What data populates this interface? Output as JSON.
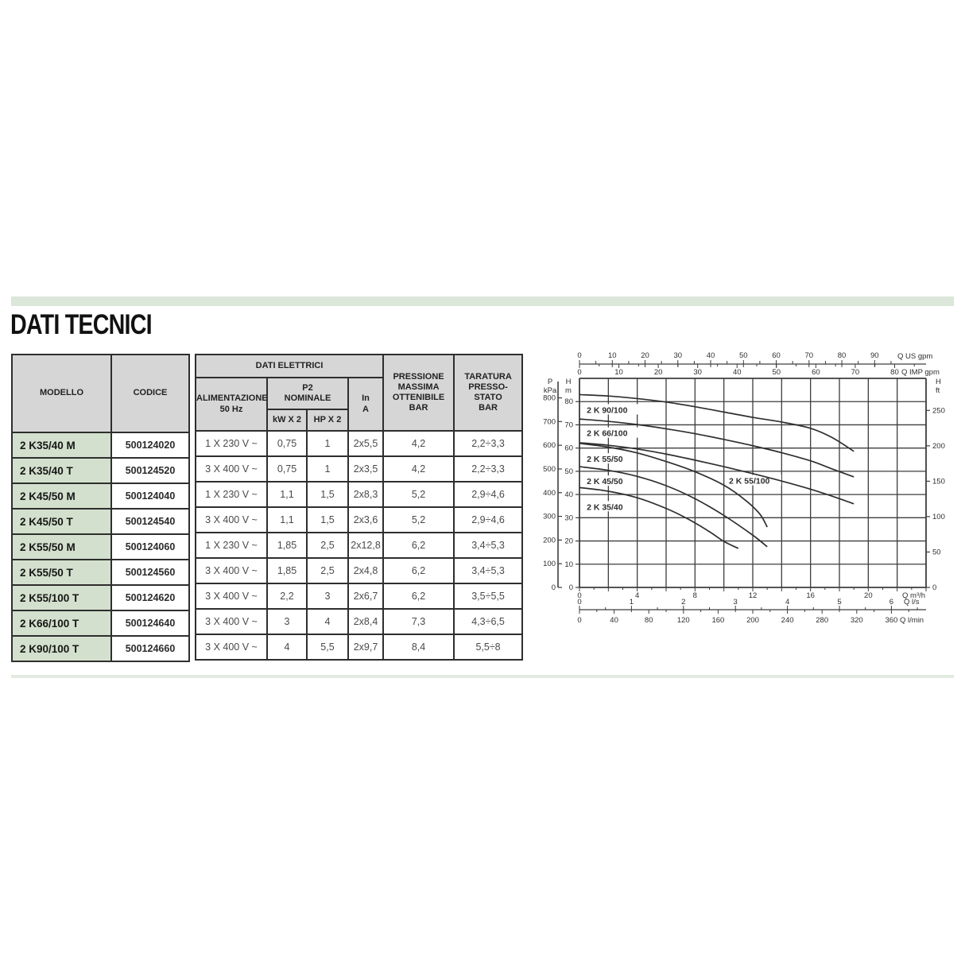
{
  "page": {
    "title": "DATI TECNICI"
  },
  "table": {
    "headers": {
      "modello": "MODELLO",
      "codice": "CODICE",
      "dati_elettrici": "DATI ELETTRICI",
      "alimentazione": "ALIMENTAZIONE\n50 Hz",
      "p2_nominale": "P2\nNOMINALE",
      "kw": "kW X 2",
      "hp": "HP X 2",
      "in_a": "In\nA",
      "pressione": "PRESSIONE\nMASSIMA\nOTTENIBILE\nBAR",
      "taratura": "TARATURA\nPRESSO-\nSTATO\nBAR"
    },
    "rows": [
      {
        "model": "2 K35/40 M",
        "codice": "500124020",
        "alimentazione": "1 X 230 V ~",
        "kw": "0,75",
        "hp": "1",
        "in_a": "2x5,5",
        "pressione": "4,2",
        "taratura": "2,2÷3,3"
      },
      {
        "model": "2 K35/40 T",
        "codice": "500124520",
        "alimentazione": "3 X 400 V ~",
        "kw": "0,75",
        "hp": "1",
        "in_a": "2x3,5",
        "pressione": "4,2",
        "taratura": "2,2÷3,3"
      },
      {
        "model": "2 K45/50 M",
        "codice": "500124040",
        "alimentazione": "1 X 230 V ~",
        "kw": "1,1",
        "hp": "1,5",
        "in_a": "2x8,3",
        "pressione": "5,2",
        "taratura": "2,9÷4,6"
      },
      {
        "model": "2 K45/50 T",
        "codice": "500124540",
        "alimentazione": "3 X 400 V ~",
        "kw": "1,1",
        "hp": "1,5",
        "in_a": "2x3,6",
        "pressione": "5,2",
        "taratura": "2,9÷4,6"
      },
      {
        "model": "2 K55/50 M",
        "codice": "500124060",
        "alimentazione": "1 X 230 V ~",
        "kw": "1,85",
        "hp": "2,5",
        "in_a": "2x12,8",
        "pressione": "6,2",
        "taratura": "3,4÷5,3"
      },
      {
        "model": "2 K55/50 T",
        "codice": "500124560",
        "alimentazione": "3 X 400 V ~",
        "kw": "1,85",
        "hp": "2,5",
        "in_a": "2x4,8",
        "pressione": "6,2",
        "taratura": "3,4÷5,3"
      },
      {
        "model": "2 K55/100 T",
        "codice": "500124620",
        "alimentazione": "3 X 400 V ~",
        "kw": "2,2",
        "hp": "3",
        "in_a": "2x6,7",
        "pressione": "6,2",
        "taratura": "3,5÷5,5"
      },
      {
        "model": "2 K66/100 T",
        "codice": "500124640",
        "alimentazione": "3 X 400 V ~",
        "kw": "3",
        "hp": "4",
        "in_a": "2x8,4",
        "pressione": "7,3",
        "taratura": "4,3÷6,5"
      },
      {
        "model": "2 K90/100 T",
        "codice": "500124660",
        "alimentazione": "3 X 400 V ~",
        "kw": "4",
        "hp": "5,5",
        "in_a": "2x9,7",
        "pressione": "8,4",
        "taratura": "5,5÷8"
      }
    ]
  },
  "chart_data": {
    "type": "line",
    "title": "",
    "xlim_m3h": [
      0,
      24
    ],
    "ylim_m": [
      0,
      90
    ],
    "grid": {
      "x_step_m3h": 2,
      "y_step_m": 10
    },
    "axes": {
      "top": [
        {
          "label": "Q US gpm",
          "ticks": [
            0,
            10,
            20,
            30,
            40,
            50,
            60,
            70,
            80,
            90
          ],
          "to_m3h": 0.2271
        },
        {
          "label": "Q IMP gpm",
          "ticks": [
            0,
            10,
            20,
            30,
            40,
            50,
            60,
            70,
            80
          ],
          "to_m3h": 0.2728
        }
      ],
      "bottom": [
        {
          "label": "Q m³/h",
          "ticks": [
            0,
            4,
            8,
            12,
            16,
            20
          ],
          "to_m3h": 1
        },
        {
          "label": "Q l/s",
          "ticks": [
            0,
            1,
            2,
            3,
            4,
            5,
            6
          ],
          "to_m3h": 3.6
        },
        {
          "label": "Q l/min",
          "ticks": [
            0,
            40,
            80,
            120,
            160,
            200,
            240,
            280,
            320,
            360
          ],
          "to_m3h": 0.06
        }
      ],
      "left_pressure": {
        "label": "P kPa",
        "ticks": [
          0,
          100,
          200,
          300,
          400,
          500,
          600,
          700,
          800
        ],
        "to_m": 0.102
      },
      "left_head": {
        "label": "H m",
        "ticks": [
          0,
          10,
          20,
          30,
          40,
          50,
          60,
          70,
          80
        ],
        "to_m": 1
      },
      "right_head": {
        "label": "H ft",
        "ticks": [
          0,
          50,
          100,
          150,
          200,
          250
        ],
        "to_m": 0.3048
      }
    },
    "series": [
      {
        "name": "2 K 90/100",
        "label_at": [
          0.5,
          76.5
        ],
        "points": [
          [
            0,
            83
          ],
          [
            2,
            82.4
          ],
          [
            4,
            81.3
          ],
          [
            6,
            79.8
          ],
          [
            8,
            77.8
          ],
          [
            10,
            75.5
          ],
          [
            12,
            73.2
          ],
          [
            14,
            71.2
          ],
          [
            16,
            68.5
          ],
          [
            17.5,
            64.5
          ],
          [
            19,
            58.6
          ]
        ]
      },
      {
        "name": "2 K 66/100",
        "label_at": [
          0.5,
          66.5
        ],
        "points": [
          [
            0,
            72.5
          ],
          [
            2,
            71.5
          ],
          [
            4,
            70.1
          ],
          [
            6,
            68.3
          ],
          [
            8,
            66.2
          ],
          [
            10,
            63.7
          ],
          [
            12,
            61
          ],
          [
            14,
            58
          ],
          [
            16,
            54.5
          ],
          [
            17.5,
            51
          ],
          [
            19,
            47.6
          ]
        ]
      },
      {
        "name": "2 K 55/100",
        "label_at": [
          10.35,
          46
        ],
        "points": [
          [
            0,
            62.3
          ],
          [
            2,
            61.2
          ],
          [
            4,
            59.6
          ],
          [
            6,
            57.4
          ],
          [
            8,
            54.8
          ],
          [
            10,
            52
          ],
          [
            12,
            49
          ],
          [
            14,
            45.8
          ],
          [
            16,
            42.3
          ],
          [
            17.5,
            39.3
          ],
          [
            19,
            36
          ]
        ]
      },
      {
        "name": "2 K 55/50",
        "label_at": [
          0.5,
          55.4
        ],
        "points": [
          [
            0,
            62
          ],
          [
            2,
            60.4
          ],
          [
            4,
            57.9
          ],
          [
            6,
            54.2
          ],
          [
            8,
            49.8
          ],
          [
            10,
            44
          ],
          [
            11.5,
            37.5
          ],
          [
            12.5,
            31.5
          ],
          [
            13,
            26
          ]
        ]
      },
      {
        "name": "2 K 45/50",
        "label_at": [
          0.5,
          45.8
        ],
        "points": [
          [
            0,
            52
          ],
          [
            2,
            50.4
          ],
          [
            4,
            47.8
          ],
          [
            6,
            43.8
          ],
          [
            8,
            38.2
          ],
          [
            10,
            31
          ],
          [
            12,
            22.5
          ],
          [
            13,
            17.5
          ]
        ]
      },
      {
        "name": "2 K 35/40",
        "label_at": [
          0.5,
          34.8
        ],
        "points": [
          [
            0,
            43
          ],
          [
            2,
            41.4
          ],
          [
            4,
            38.6
          ],
          [
            6,
            34
          ],
          [
            7.5,
            29.5
          ],
          [
            9,
            24
          ],
          [
            10,
            19.8
          ],
          [
            11,
            16.8
          ]
        ]
      }
    ]
  }
}
